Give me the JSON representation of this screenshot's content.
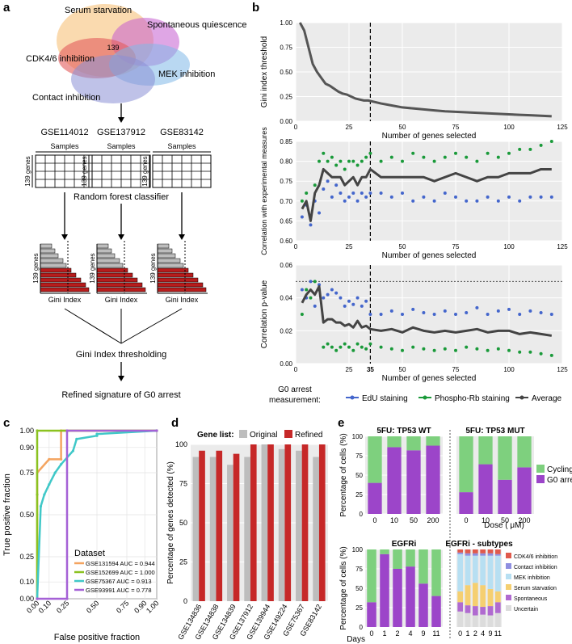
{
  "panels": {
    "a": {
      "label": "a",
      "venn": {
        "sets": [
          "Serum starvation",
          "Spontaneous quiescence",
          "CDK4/6 inhibition",
          "MEK inhibition",
          "Contact inhibition"
        ],
        "intersection": "139",
        "colors": [
          "#f6c27a",
          "#c45ccf",
          "#e35b5b",
          "#7fb8e8",
          "#8a8fd6"
        ]
      },
      "datasets": [
        "GSE114012",
        "GSE137912",
        "GSE83142"
      ],
      "samples_label": "Samples",
      "genes_label": "139 genes",
      "classifier_label": "Random forest classifier",
      "gini_label": "Gini Index",
      "threshold_label": "Gini Index thresholding",
      "refined_label": "Refined signature of G0 arrest",
      "bar_color_red": "#b71c1c",
      "bar_color_grey": "#bdbdbd"
    },
    "b": {
      "label": "b",
      "legend_title_1": "G0 arrest",
      "legend_title_2": "measurement:",
      "legend_items": [
        {
          "name": "EdU staining",
          "color": "#4466cc"
        },
        {
          "name": "Phospho-Rb staining",
          "color": "#1a9a3a"
        },
        {
          "name": "Average",
          "color": "#444444"
        }
      ],
      "cutoff_label": "35"
    },
    "c": {
      "label": "c"
    },
    "d": {
      "label": "d"
    },
    "e": {
      "label": "e"
    }
  },
  "chart_data": [
    {
      "id": "b_top",
      "type": "line",
      "xlabel": "Number of genes selected",
      "ylabel": "Gini index threshold",
      "xlim": [
        0,
        125
      ],
      "ylim": [
        0,
        1
      ],
      "xticks": [
        0,
        25,
        50,
        75,
        100,
        125
      ],
      "yticks": [
        0,
        0.25,
        0.5,
        0.75,
        1.0
      ],
      "ytick_labels": [
        "0.00",
        "0.25",
        "0.50",
        "0.75",
        "1.00"
      ],
      "cutoff_x": 35,
      "series": [
        {
          "name": "Gini threshold",
          "color": "#555555",
          "x": [
            2,
            4,
            6,
            8,
            10,
            12,
            14,
            16,
            18,
            20,
            22,
            24,
            26,
            28,
            30,
            32,
            34,
            36,
            38,
            40,
            45,
            50,
            55,
            60,
            65,
            70,
            75,
            80,
            85,
            90,
            95,
            100,
            105,
            110,
            115,
            120
          ],
          "y": [
            1.0,
            0.92,
            0.75,
            0.58,
            0.5,
            0.44,
            0.38,
            0.36,
            0.33,
            0.3,
            0.28,
            0.27,
            0.25,
            0.23,
            0.22,
            0.21,
            0.21,
            0.2,
            0.19,
            0.18,
            0.16,
            0.14,
            0.13,
            0.12,
            0.11,
            0.1,
            0.095,
            0.09,
            0.085,
            0.08,
            0.075,
            0.07,
            0.065,
            0.06,
            0.055,
            0.05
          ]
        }
      ]
    },
    {
      "id": "b_mid",
      "type": "line",
      "xlabel": "Number of genes selected",
      "ylabel": "Correlation with experimental measures",
      "xlim": [
        0,
        125
      ],
      "ylim": [
        0.6,
        0.85
      ],
      "xticks": [
        0,
        25,
        50,
        75,
        100,
        125
      ],
      "yticks": [
        0.6,
        0.65,
        0.7,
        0.75,
        0.8,
        0.85
      ],
      "ytick_labels": [
        "0.60",
        "0.65",
        "0.70",
        "0.75",
        "0.80",
        "0.85"
      ],
      "cutoff_x": 35,
      "series": [
        {
          "name": "EdU staining",
          "color": "#4466cc",
          "x": [
            3,
            5,
            7,
            9,
            11,
            13,
            15,
            17,
            19,
            21,
            23,
            25,
            27,
            29,
            31,
            33,
            35,
            40,
            45,
            50,
            55,
            60,
            65,
            70,
            75,
            80,
            85,
            90,
            95,
            100,
            105,
            110,
            115,
            120
          ],
          "y": [
            0.66,
            0.69,
            0.64,
            0.7,
            0.67,
            0.73,
            0.75,
            0.71,
            0.74,
            0.72,
            0.7,
            0.71,
            0.72,
            0.7,
            0.72,
            0.71,
            0.72,
            0.72,
            0.71,
            0.72,
            0.7,
            0.71,
            0.7,
            0.72,
            0.71,
            0.7,
            0.7,
            0.71,
            0.7,
            0.71,
            0.7,
            0.71,
            0.71,
            0.71
          ]
        },
        {
          "name": "Phospho-Rb staining",
          "color": "#1a9a3a",
          "x": [
            3,
            5,
            7,
            9,
            11,
            13,
            15,
            17,
            19,
            21,
            23,
            25,
            27,
            29,
            31,
            33,
            35,
            40,
            45,
            50,
            55,
            60,
            65,
            70,
            75,
            80,
            85,
            90,
            95,
            100,
            105,
            110,
            115,
            120
          ],
          "y": [
            0.7,
            0.72,
            0.66,
            0.74,
            0.8,
            0.82,
            0.8,
            0.81,
            0.79,
            0.8,
            0.78,
            0.8,
            0.8,
            0.79,
            0.8,
            0.81,
            0.82,
            0.8,
            0.81,
            0.8,
            0.82,
            0.81,
            0.8,
            0.81,
            0.82,
            0.81,
            0.8,
            0.82,
            0.81,
            0.82,
            0.83,
            0.83,
            0.84,
            0.85
          ]
        },
        {
          "name": "Average",
          "color": "#444444",
          "x": [
            3,
            5,
            7,
            9,
            11,
            13,
            15,
            17,
            19,
            21,
            23,
            25,
            27,
            29,
            31,
            33,
            35,
            40,
            45,
            50,
            55,
            60,
            65,
            70,
            75,
            80,
            85,
            90,
            95,
            100,
            105,
            110,
            115,
            120
          ],
          "y": [
            0.68,
            0.7,
            0.65,
            0.72,
            0.74,
            0.78,
            0.77,
            0.76,
            0.76,
            0.76,
            0.74,
            0.75,
            0.76,
            0.74,
            0.76,
            0.76,
            0.78,
            0.76,
            0.76,
            0.76,
            0.76,
            0.76,
            0.75,
            0.76,
            0.77,
            0.76,
            0.75,
            0.76,
            0.76,
            0.77,
            0.77,
            0.77,
            0.78,
            0.78
          ]
        }
      ]
    },
    {
      "id": "b_bot",
      "type": "line",
      "xlabel": "Number of genes selected",
      "ylabel": "Correlation p-value",
      "xlim": [
        0,
        125
      ],
      "ylim": [
        0,
        0.06
      ],
      "xticks": [
        0,
        25,
        35,
        50,
        75,
        100,
        125
      ],
      "yticks": [
        0,
        0.02,
        0.04,
        0.06
      ],
      "ytick_labels": [
        "0.00",
        "0.02",
        "0.04",
        "0.06"
      ],
      "cutoff_x": 35,
      "hline": 0.05,
      "series": [
        {
          "name": "EdU staining",
          "color": "#4466cc",
          "x": [
            3,
            5,
            7,
            9,
            11,
            13,
            15,
            17,
            19,
            21,
            23,
            25,
            27,
            29,
            31,
            33,
            35,
            40,
            45,
            50,
            55,
            60,
            65,
            70,
            75,
            80,
            85,
            90,
            95,
            100,
            105,
            110,
            115,
            120
          ],
          "y": [
            0.045,
            0.04,
            0.05,
            0.035,
            0.048,
            0.04,
            0.042,
            0.045,
            0.043,
            0.04,
            0.035,
            0.038,
            0.036,
            0.04,
            0.035,
            0.038,
            0.03,
            0.03,
            0.032,
            0.03,
            0.033,
            0.031,
            0.03,
            0.032,
            0.03,
            0.031,
            0.034,
            0.03,
            0.032,
            0.033,
            0.03,
            0.032,
            0.031,
            0.03
          ]
        },
        {
          "name": "Phospho-Rb staining",
          "color": "#1a9a3a",
          "x": [
            3,
            5,
            7,
            9,
            11,
            13,
            15,
            17,
            19,
            21,
            23,
            25,
            27,
            29,
            31,
            33,
            35,
            40,
            45,
            50,
            55,
            60,
            65,
            70,
            75,
            80,
            85,
            90,
            95,
            100,
            105,
            110,
            115,
            120
          ],
          "y": [
            0.03,
            0.045,
            0.04,
            0.05,
            0.045,
            0.01,
            0.012,
            0.01,
            0.008,
            0.01,
            0.012,
            0.01,
            0.008,
            0.012,
            0.01,
            0.009,
            0.012,
            0.01,
            0.009,
            0.008,
            0.01,
            0.009,
            0.008,
            0.009,
            0.008,
            0.01,
            0.009,
            0.008,
            0.009,
            0.008,
            0.007,
            0.007,
            0.006,
            0.005
          ]
        },
        {
          "name": "Average",
          "color": "#444444",
          "x": [
            3,
            5,
            7,
            9,
            11,
            13,
            15,
            17,
            19,
            21,
            23,
            25,
            27,
            29,
            31,
            33,
            35,
            40,
            45,
            50,
            55,
            60,
            65,
            70,
            75,
            80,
            85,
            90,
            95,
            100,
            105,
            110,
            115,
            120
          ],
          "y": [
            0.037,
            0.042,
            0.045,
            0.042,
            0.047,
            0.025,
            0.027,
            0.027,
            0.025,
            0.025,
            0.023,
            0.024,
            0.022,
            0.026,
            0.022,
            0.023,
            0.021,
            0.02,
            0.021,
            0.019,
            0.022,
            0.02,
            0.019,
            0.02,
            0.019,
            0.02,
            0.021,
            0.019,
            0.02,
            0.02,
            0.018,
            0.019,
            0.018,
            0.017
          ]
        }
      ]
    },
    {
      "id": "c",
      "type": "line",
      "xlabel": "False positive fraction",
      "ylabel": "True positive fraction",
      "xlim": [
        0,
        1
      ],
      "ylim": [
        0,
        1
      ],
      "xticks": [
        0,
        0.1,
        0.25,
        0.5,
        0.75,
        0.9,
        1.0
      ],
      "xtick_labels": [
        "0.00",
        "0.10",
        "0.25",
        "0.50",
        "0.75",
        "0.90",
        "1.00"
      ],
      "yticks": [
        0,
        0.1,
        0.25,
        0.5,
        0.75,
        0.9,
        1.0
      ],
      "ytick_labels": [
        "0.00",
        "0.10",
        "0.25",
        "0.50",
        "0.75",
        "0.90",
        "1.00"
      ],
      "legend_title": "Dataset",
      "series": [
        {
          "name": "GSE131594 AUC = 0.944",
          "color": "#f4a460",
          "x": [
            0,
            0,
            0.1,
            0.2,
            0.2,
            1
          ],
          "y": [
            0,
            0.75,
            0.83,
            0.83,
            1,
            1
          ]
        },
        {
          "name": "GSE152699 AUC = 1.000",
          "color": "#8bc220",
          "x": [
            0,
            0,
            0,
            1
          ],
          "y": [
            0,
            0.62,
            1,
            1
          ]
        },
        {
          "name": "GSE75367 AUC = 0.913",
          "color": "#40c8c8",
          "x": [
            0,
            0.03,
            0.06,
            0.1,
            0.15,
            0.2,
            0.3,
            0.33,
            0.5,
            0.5,
            1
          ],
          "y": [
            0,
            0.55,
            0.62,
            0.68,
            0.75,
            0.8,
            0.88,
            0.95,
            0.97,
            0.98,
            1
          ]
        },
        {
          "name": "GSE93991 AUC = 0.778",
          "color": "#a561d6",
          "x": [
            0,
            0,
            0.25,
            0.25,
            1
          ],
          "y": [
            0,
            0,
            0,
            1,
            1
          ]
        }
      ]
    },
    {
      "id": "d",
      "type": "bar",
      "ylabel": "Percentage of genes detected (%)",
      "ylim": [
        0,
        100
      ],
      "yticks": [
        0,
        25,
        50,
        75,
        100
      ],
      "legend_title": "Gene list:",
      "categories": [
        "GSE134836",
        "GSE134838",
        "GSE134839",
        "GSE137912",
        "GSE139944",
        "GSE149224",
        "GSE75367",
        "GSE83142"
      ],
      "series": [
        {
          "name": "Original",
          "color": "#bdbdbd",
          "values": [
            92,
            92,
            87,
            92,
            100,
            97,
            96,
            92
          ]
        },
        {
          "name": "Refined",
          "color": "#c62828",
          "values": [
            96,
            96,
            94,
            100,
            100,
            100,
            100,
            100
          ]
        }
      ]
    },
    {
      "id": "e_tl",
      "type": "bar",
      "title": "5FU: TP53 WT",
      "ylabel": "Percentage of cells (%)",
      "categories": [
        "0",
        "10",
        "50",
        "200"
      ],
      "series": [
        {
          "name": "G0 arrested",
          "color": "#9c45c9",
          "values": [
            40,
            86,
            82,
            88
          ]
        },
        {
          "name": "Cycling",
          "color": "#7ed07e",
          "values": [
            60,
            14,
            18,
            12
          ]
        }
      ]
    },
    {
      "id": "e_tr",
      "type": "bar",
      "title": "5FU: TP53 MUT",
      "xlabel": "Dose ( μM)",
      "categories": [
        "0",
        "10",
        "50",
        "200"
      ],
      "series": [
        {
          "name": "G0 arrested",
          "color": "#9c45c9",
          "values": [
            28,
            64,
            44,
            60
          ]
        },
        {
          "name": "Cycling",
          "color": "#7ed07e",
          "values": [
            72,
            36,
            56,
            40
          ]
        }
      ],
      "legend": [
        "Cycling",
        "G0 arrested"
      ]
    },
    {
      "id": "e_bl",
      "type": "bar",
      "title": "EGFRi",
      "ylabel": "Percentage of cells (%)",
      "xlabel": "Days",
      "categories": [
        "0",
        "1",
        "2",
        "4",
        "9",
        "11"
      ],
      "series": [
        {
          "name": "G0 arrested",
          "color": "#9c45c9",
          "values": [
            32,
            94,
            75,
            78,
            56,
            40
          ]
        },
        {
          "name": "Cycling",
          "color": "#7ed07e",
          "values": [
            68,
            6,
            25,
            22,
            44,
            60
          ]
        }
      ]
    },
    {
      "id": "e_br",
      "type": "bar",
      "title": "EGFRi - subtypes",
      "categories": [
        "0",
        "1",
        "2",
        "4",
        "9",
        "11"
      ],
      "series": [
        {
          "name": "Uncertain",
          "color": "#dcdcdc",
          "values": [
            20,
            18,
            15,
            16,
            15,
            18
          ]
        },
        {
          "name": "Spontaneous",
          "color": "#b06ad0",
          "values": [
            12,
            10,
            12,
            10,
            12,
            14
          ]
        },
        {
          "name": "Serum starvation",
          "color": "#f5cf70",
          "values": [
            14,
            26,
            30,
            28,
            22,
            14
          ]
        },
        {
          "name": "MEK inhibition",
          "color": "#b7dff2",
          "values": [
            48,
            38,
            35,
            38,
            43,
            46
          ]
        },
        {
          "name": "Contact inhibition",
          "color": "#8e8ee0",
          "values": [
            2,
            3,
            3,
            3,
            3,
            2
          ]
        },
        {
          "name": "CDK4/6 inhibition",
          "color": "#e05a4c",
          "values": [
            4,
            5,
            5,
            5,
            5,
            6
          ]
        }
      ],
      "legend": [
        "CDK4/6 inhibition",
        "Contact inhibition",
        "MEK inhibition",
        "Serum starvation",
        "Spontaneous",
        "Uncertain"
      ]
    }
  ]
}
